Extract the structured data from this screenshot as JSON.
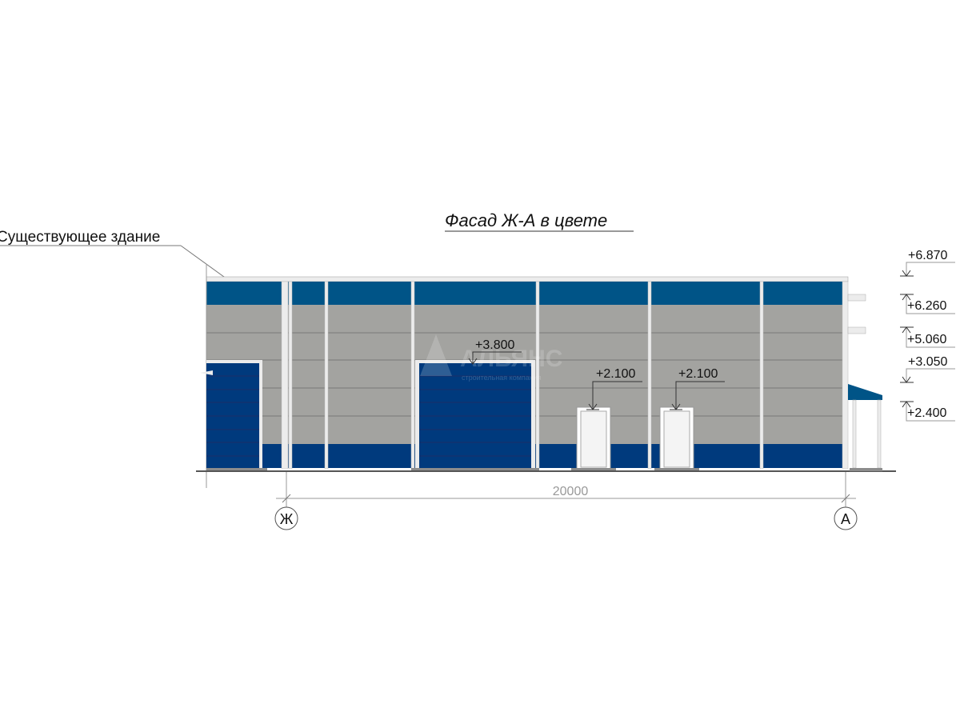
{
  "title": "Фасад Ж-А в цвете",
  "existing_building_label": "Существующее здание",
  "watermark": {
    "name": "АЛЬЯНС",
    "subtitle": "строительная компания"
  },
  "door_levels": {
    "gate": "+3.800",
    "door1": "+2.100",
    "door2": "+2.100"
  },
  "levels": [
    {
      "value": "+6.870",
      "arrow": "down"
    },
    {
      "value": "+6.260",
      "arrow": "up"
    },
    {
      "value": "+5.060",
      "arrow": "up"
    },
    {
      "value": "+3.050",
      "arrow": "down"
    },
    {
      "value": "+2.400",
      "arrow": "up"
    }
  ],
  "dimension": "20000",
  "axes": [
    "Ж",
    "А"
  ],
  "colors": {
    "top_band": "#005487",
    "bottom_band": "#003a7d",
    "wall": "#a3a3a0",
    "gate": "#003a7d",
    "trim": "#ececec"
  }
}
